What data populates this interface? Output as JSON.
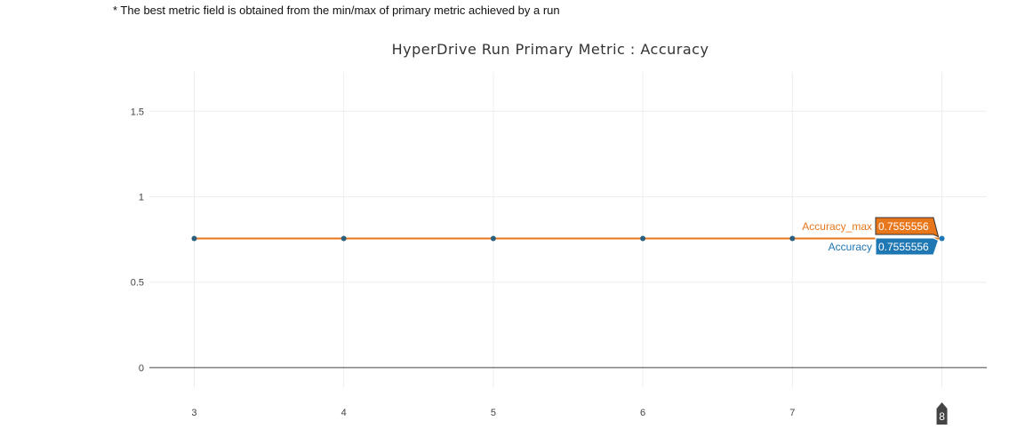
{
  "note": "* The best metric field is obtained from the min/max of primary metric achieved by a run",
  "chart_data": {
    "type": "line",
    "title": "HyperDrive Run Primary Metric : Accuracy",
    "x": [
      3,
      4,
      5,
      6,
      7,
      8
    ],
    "xlim": [
      2.7,
      8.3
    ],
    "ylim": [
      -0.12,
      1.73
    ],
    "x_ticks": [
      "3",
      "4",
      "5",
      "6",
      "7"
    ],
    "y_ticks": [
      0,
      0.5,
      1,
      1.5
    ],
    "y_tick_labels": [
      "0",
      "0.5",
      "1",
      "1.5"
    ],
    "grid": true,
    "series": [
      {
        "name": "Accuracy_max",
        "color": "#e8761a",
        "values": [
          0.7555556,
          0.7555556,
          0.7555556,
          0.7555556,
          0.7555556,
          0.7555556
        ]
      },
      {
        "name": "Accuracy",
        "color": "#1f77b4",
        "values": [
          0.7555556,
          0.7555556,
          0.7555556,
          0.7555556,
          0.7555556,
          0.7555556
        ]
      }
    ],
    "hover": {
      "x_label": "8",
      "items": [
        {
          "name": "Accuracy_max",
          "value": "0.7555556",
          "color": "#e8761a"
        },
        {
          "name": "Accuracy",
          "value": "0.7555556",
          "color": "#1f77b4"
        }
      ]
    }
  }
}
